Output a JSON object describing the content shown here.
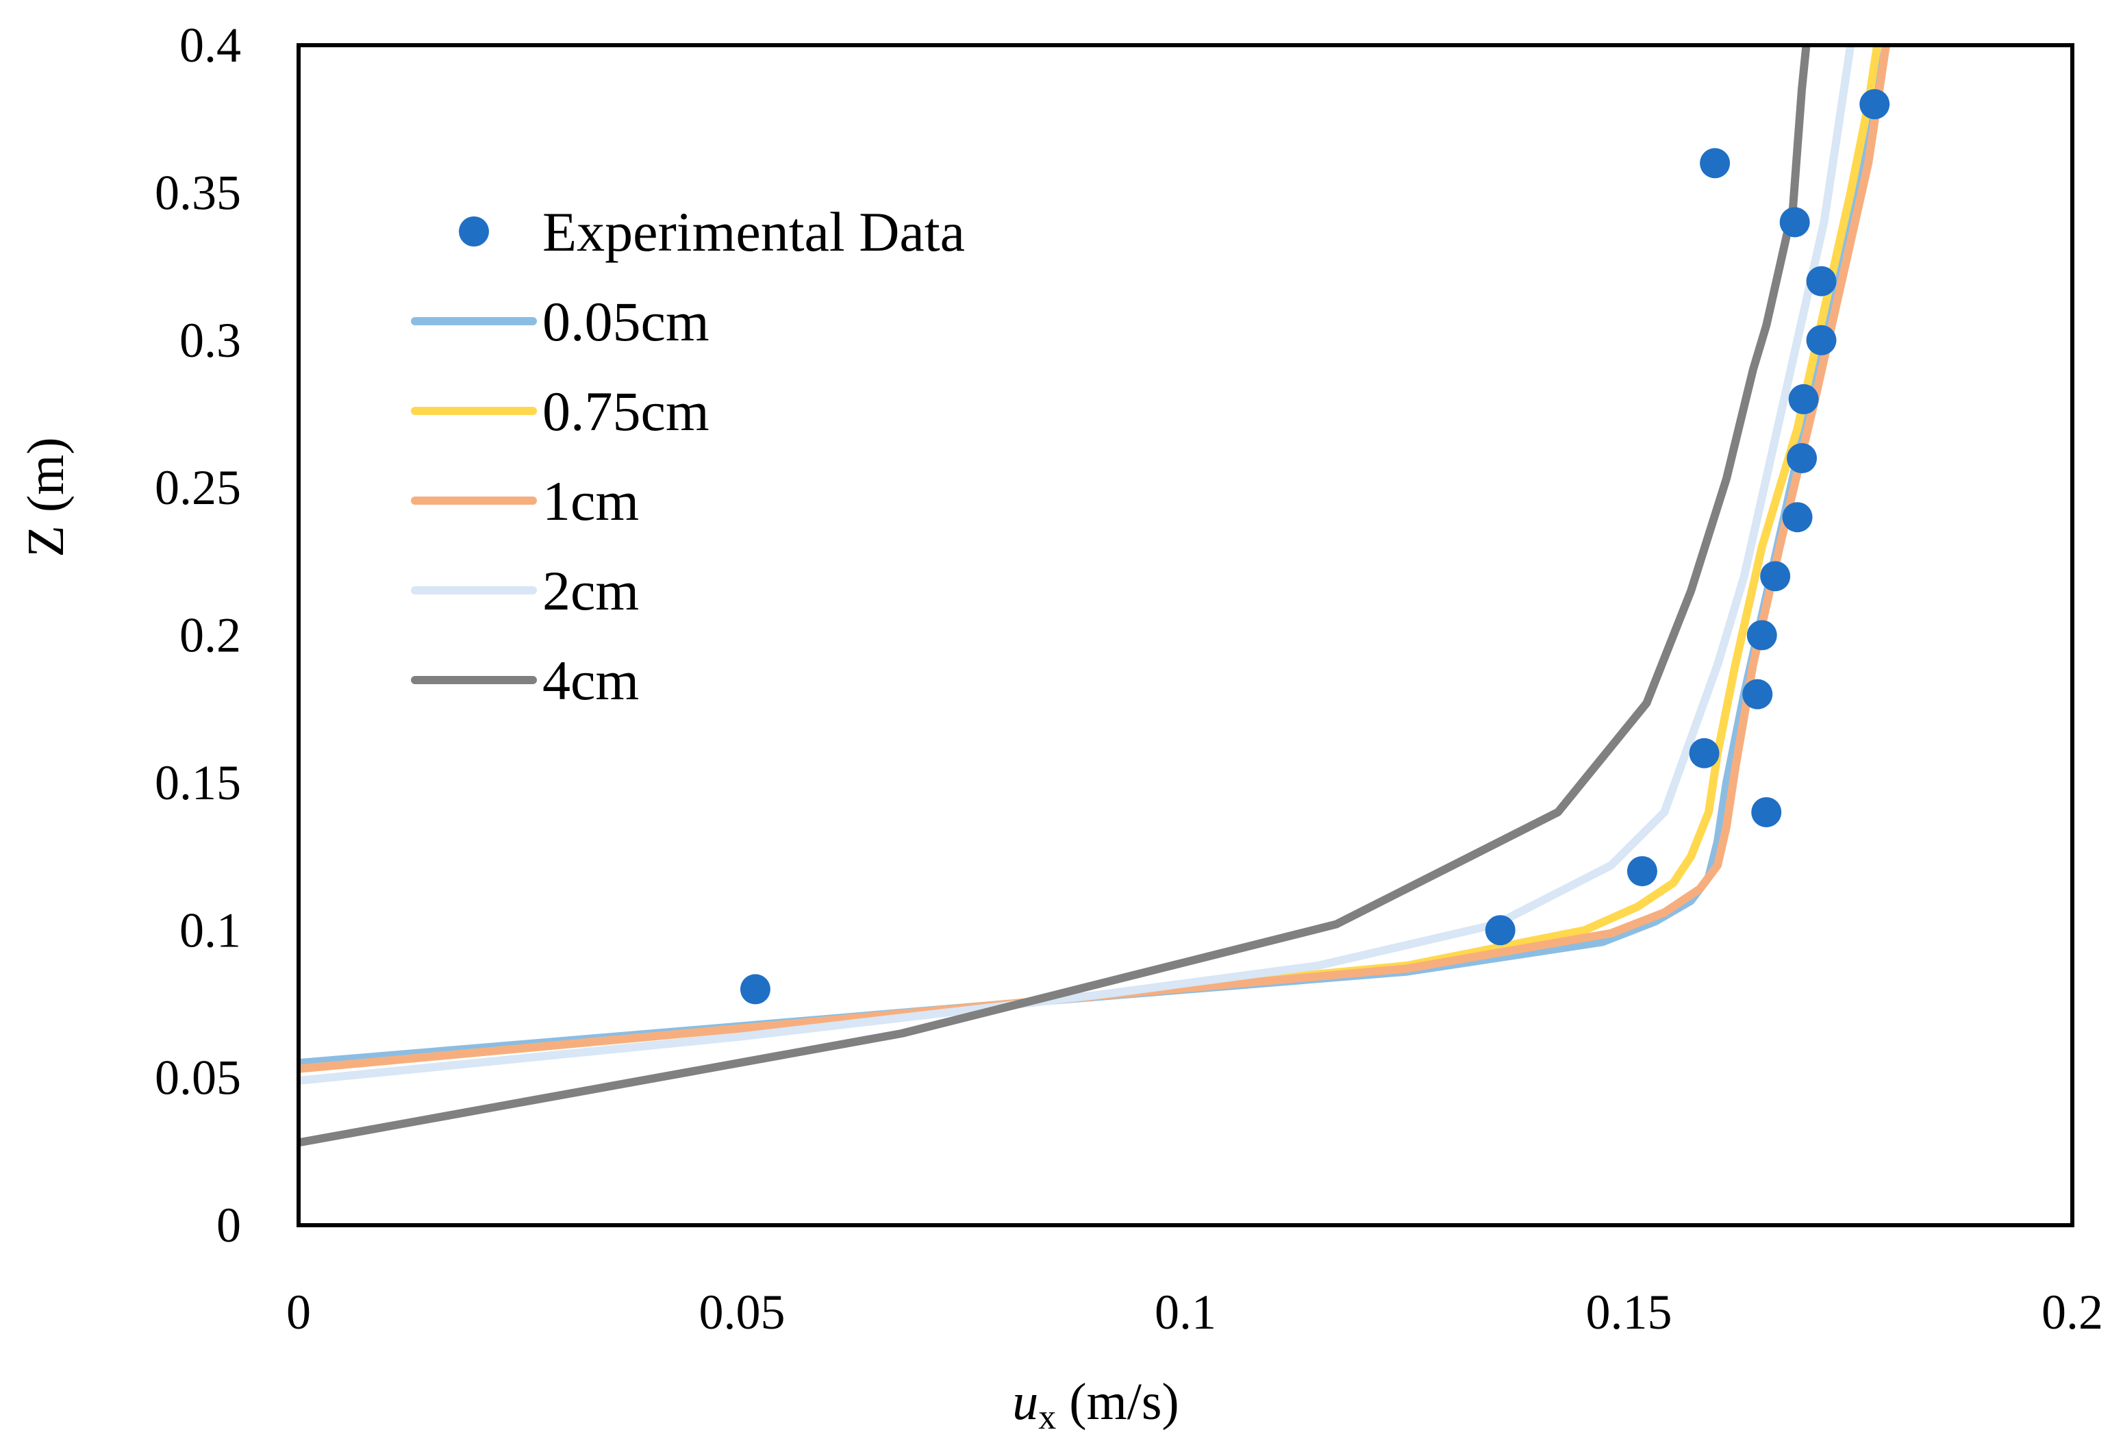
{
  "chart_data": {
    "type": "line",
    "title": "",
    "xlabel": {
      "main": "u",
      "sub": "x",
      "unit": " (m/s)"
    },
    "ylabel": "Z (m)",
    "xlim": [
      0,
      0.2
    ],
    "ylim": [
      0,
      0.4
    ],
    "x_ticks": [
      "0",
      "0.05",
      "0.1",
      "0.15",
      "0.2"
    ],
    "y_ticks": [
      "0",
      "0.05",
      "0.1",
      "0.15",
      "0.2",
      "0.25",
      "0.3",
      "0.35",
      "0.4"
    ],
    "x_tick_values": [
      0,
      0.05,
      0.1,
      0.15,
      0.2
    ],
    "y_tick_values": [
      0,
      0.05,
      0.1,
      0.15,
      0.2,
      0.25,
      0.3,
      0.35,
      0.4
    ],
    "grid": false,
    "legend_position": "upper-left",
    "scatter": {
      "name": "Experimental Data",
      "color": "#1f6fc5",
      "points": [
        [
          0.0515,
          0.08
        ],
        [
          0.1355,
          0.1
        ],
        [
          0.1515,
          0.12
        ],
        [
          0.1655,
          0.14
        ],
        [
          0.1585,
          0.16
        ],
        [
          0.1645,
          0.18
        ],
        [
          0.165,
          0.2
        ],
        [
          0.1665,
          0.22
        ],
        [
          0.169,
          0.24
        ],
        [
          0.1695,
          0.26
        ],
        [
          0.1697,
          0.28
        ],
        [
          0.1717,
          0.3
        ],
        [
          0.1717,
          0.32
        ],
        [
          0.1687,
          0.34
        ],
        [
          0.1597,
          0.36
        ],
        [
          0.1777,
          0.38
        ]
      ]
    },
    "series": [
      {
        "name": "0.05cm",
        "color": "#8bbde3",
        "points": [
          [
            0,
            0.055
          ],
          [
            0.08,
            0.075
          ],
          [
            0.125,
            0.086
          ],
          [
            0.147,
            0.096
          ],
          [
            0.153,
            0.103
          ],
          [
            0.157,
            0.11
          ],
          [
            0.159,
            0.118
          ],
          [
            0.16,
            0.13
          ],
          [
            0.161,
            0.15
          ],
          [
            0.163,
            0.18
          ],
          [
            0.166,
            0.22
          ],
          [
            0.169,
            0.26
          ],
          [
            0.172,
            0.3
          ],
          [
            0.175,
            0.34
          ],
          [
            0.177,
            0.37
          ],
          [
            0.178,
            0.4
          ]
        ]
      },
      {
        "name": "0.75cm",
        "color": "#ffd84d",
        "points": [
          [
            0,
            0.053
          ],
          [
            0.08,
            0.075
          ],
          [
            0.125,
            0.088
          ],
          [
            0.145,
            0.1
          ],
          [
            0.151,
            0.108
          ],
          [
            0.155,
            0.116
          ],
          [
            0.157,
            0.125
          ],
          [
            0.159,
            0.14
          ],
          [
            0.16,
            0.16
          ],
          [
            0.162,
            0.19
          ],
          [
            0.165,
            0.23
          ],
          [
            0.169,
            0.27
          ],
          [
            0.172,
            0.31
          ],
          [
            0.175,
            0.35
          ],
          [
            0.177,
            0.38
          ],
          [
            0.178,
            0.4
          ]
        ]
      },
      {
        "name": "1cm",
        "color": "#f7ae7e",
        "points": [
          [
            0,
            0.053
          ],
          [
            0.08,
            0.075
          ],
          [
            0.125,
            0.087
          ],
          [
            0.148,
            0.099
          ],
          [
            0.154,
            0.106
          ],
          [
            0.158,
            0.114
          ],
          [
            0.16,
            0.122
          ],
          [
            0.161,
            0.135
          ],
          [
            0.162,
            0.155
          ],
          [
            0.164,
            0.19
          ],
          [
            0.167,
            0.23
          ],
          [
            0.171,
            0.28
          ],
          [
            0.174,
            0.32
          ],
          [
            0.177,
            0.36
          ],
          [
            0.178,
            0.38
          ],
          [
            0.179,
            0.4
          ]
        ]
      },
      {
        "name": "2cm",
        "color": "#d8e6f5",
        "points": [
          [
            0,
            0.049
          ],
          [
            0.05,
            0.064
          ],
          [
            0.09,
            0.078
          ],
          [
            0.115,
            0.088
          ],
          [
            0.135,
            0.102
          ],
          [
            0.148,
            0.122
          ],
          [
            0.154,
            0.14
          ],
          [
            0.157,
            0.165
          ],
          [
            0.16,
            0.19
          ],
          [
            0.163,
            0.22
          ],
          [
            0.166,
            0.26
          ],
          [
            0.169,
            0.3
          ],
          [
            0.172,
            0.34
          ],
          [
            0.174,
            0.38
          ],
          [
            0.175,
            0.4
          ]
        ]
      },
      {
        "name": "4cm",
        "color": "#808080",
        "points": [
          [
            0,
            0.028
          ],
          [
            0.068,
            0.065
          ],
          [
            0.117,
            0.102
          ],
          [
            0.142,
            0.14
          ],
          [
            0.152,
            0.177
          ],
          [
            0.157,
            0.215
          ],
          [
            0.161,
            0.253
          ],
          [
            0.164,
            0.29
          ],
          [
            0.1655,
            0.305
          ],
          [
            0.167,
            0.325
          ],
          [
            0.1685,
            0.345
          ],
          [
            0.169,
            0.365
          ],
          [
            0.1695,
            0.385
          ],
          [
            0.17,
            0.4
          ]
        ]
      }
    ]
  }
}
